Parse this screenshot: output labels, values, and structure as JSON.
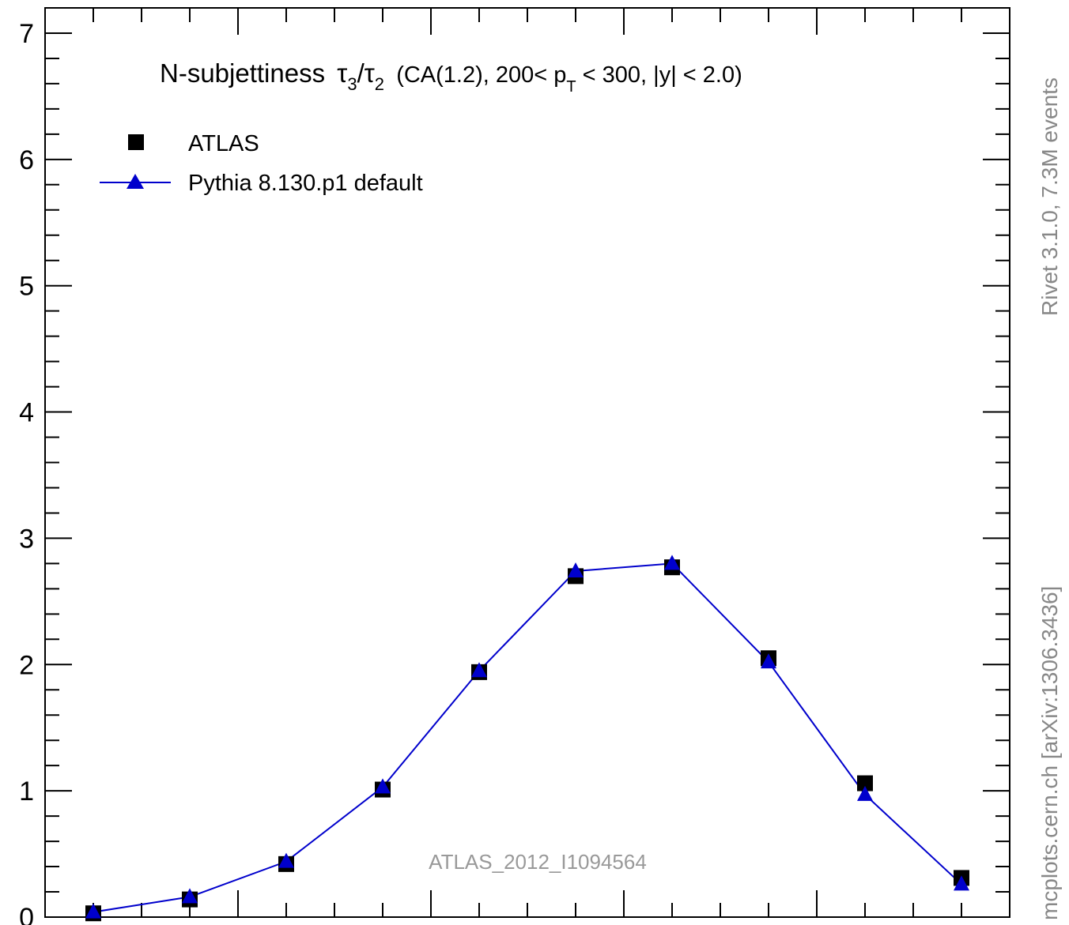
{
  "chart_data": {
    "type": "scatter",
    "title_main": "N-subjettiness",
    "title_tau_a": "τ",
    "title_tau_a_sub": "3",
    "title_slash": "/",
    "title_tau_b": "τ",
    "title_tau_b_sub": "2",
    "title_rest_1": "(CA(1.2), 200< p",
    "title_pt_sub": "T",
    "title_rest_2": " < 300, |y| < 2.0)",
    "ylim": [
      0,
      7.2
    ],
    "xlim": [
      0.0,
      1.0
    ],
    "yticks": [
      "0",
      "1",
      "2",
      "3",
      "4",
      "5",
      "6",
      "7"
    ],
    "series": [
      {
        "name": "ATLAS",
        "marker": "square",
        "color": "#000000",
        "x": [
          0.05,
          0.15,
          0.25,
          0.35,
          0.45,
          0.55,
          0.65,
          0.75,
          0.85,
          0.95
        ],
        "values": [
          0.03,
          0.14,
          0.42,
          1.01,
          1.94,
          2.7,
          2.77,
          2.05,
          1.06,
          0.31
        ]
      },
      {
        "name": "Pythia 8.130.p1 default",
        "marker": "triangle",
        "color": "#0000cc",
        "x": [
          0.05,
          0.15,
          0.25,
          0.35,
          0.45,
          0.55,
          0.65,
          0.75,
          0.85,
          0.95
        ],
        "values": [
          0.04,
          0.16,
          0.44,
          1.03,
          1.95,
          2.74,
          2.8,
          2.02,
          0.97,
          0.26
        ]
      }
    ],
    "analysis_label": "ATLAS_2012_I1094564",
    "side_label_top": "Rivet 3.1.0,  7.3M events",
    "side_label_bottom": "mcplots.cern.ch [arXiv:1306.3436]"
  }
}
